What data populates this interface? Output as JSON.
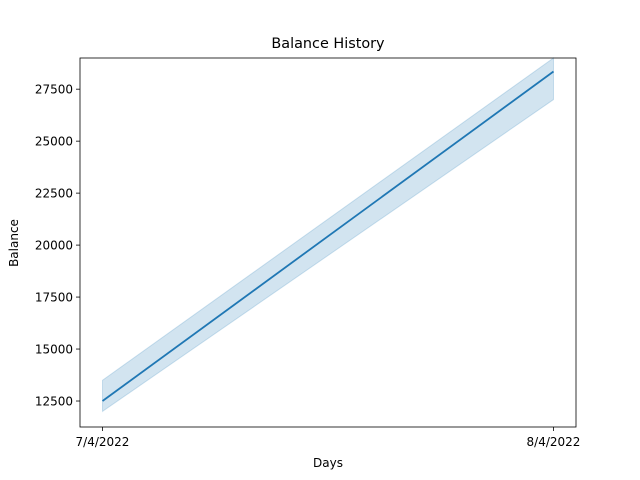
{
  "chart_data": {
    "type": "line",
    "title": "Balance History",
    "xlabel": "Days",
    "ylabel": "Balance",
    "x": [
      "7/4/2022",
      "8/4/2022"
    ],
    "xlim": [
      "7/4/2022",
      "8/4/2022"
    ],
    "ylim": [
      11250,
      29000
    ],
    "yticks": [
      12500,
      15000,
      17500,
      20000,
      22500,
      25000,
      27500
    ],
    "series": [
      {
        "values": [
          12500,
          28350
        ],
        "band_lower": [
          12000,
          27000
        ],
        "band_upper": [
          13500,
          29000
        ],
        "color": "#1f77b4",
        "band_color": "#1f77b4"
      }
    ],
    "grid": false,
    "legend": "none"
  }
}
